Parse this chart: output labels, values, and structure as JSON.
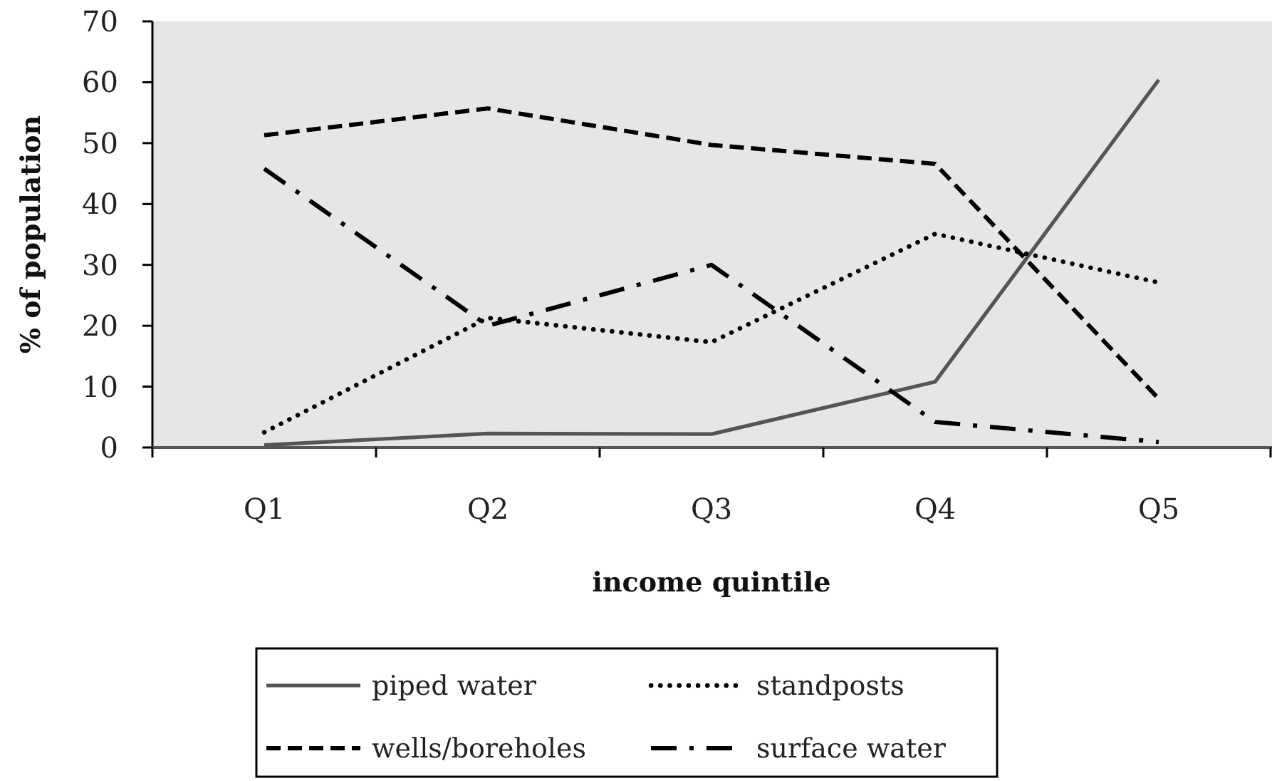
{
  "chart_data": {
    "type": "line",
    "xlabel": "income quintile",
    "ylabel": "% of population",
    "categories": [
      "Q1",
      "Q2",
      "Q3",
      "Q4",
      "Q5"
    ],
    "ylim": [
      0,
      70
    ],
    "yticks": [
      0,
      10,
      20,
      30,
      40,
      50,
      60,
      70
    ],
    "legend": "bottom",
    "series": [
      {
        "name": "piped water",
        "color": "#555555",
        "line_style": "solid",
        "values": [
          0.4,
          2.3,
          2.2,
          10.8,
          60.4
        ]
      },
      {
        "name": "standposts",
        "color": "#000000",
        "line_style": "dotted",
        "values": [
          2.5,
          21.3,
          17.3,
          35.1,
          27.1
        ]
      },
      {
        "name": "wells/boreholes",
        "color": "#000000",
        "line_style": "dashed",
        "values": [
          51.3,
          55.7,
          49.7,
          46.6,
          8.0
        ]
      },
      {
        "name": "surface water",
        "color": "#000000",
        "line_style": "dashdot",
        "values": [
          45.8,
          20.0,
          30.0,
          4.2,
          0.9
        ]
      }
    ]
  }
}
